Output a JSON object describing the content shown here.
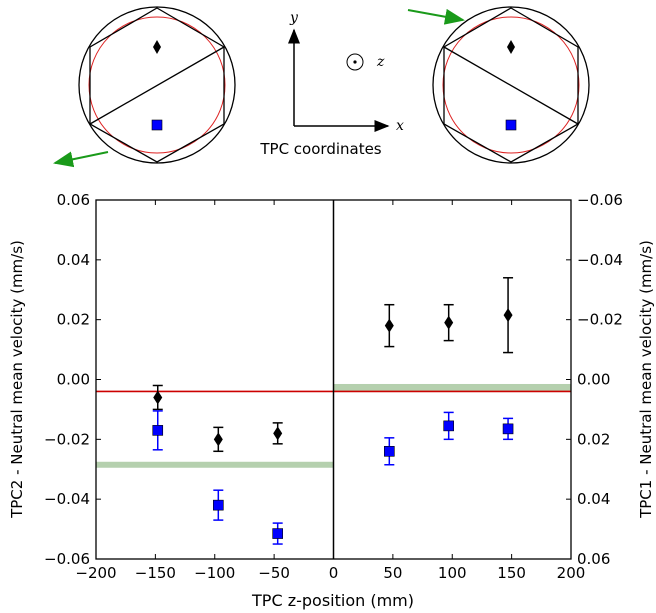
{
  "coordinate_diagram": {
    "caption": "TPC coordinates",
    "axis_y": "y",
    "axis_x": "x",
    "axis_z": "z"
  },
  "chart_data": {
    "type": "scatter",
    "xlabel": "TPC z-position (mm)",
    "ylabel_left": "TPC2 - Neutral mean velocity (mm/s)",
    "ylabel_right": "TPC1 - Neutral mean velocity (mm/s)",
    "xlim": [
      -200,
      200
    ],
    "ylim_left": [
      -0.06,
      0.06
    ],
    "ylim_right": [
      0.06,
      -0.06
    ],
    "x_ticks": [
      "−200",
      "−150",
      "−100",
      "−50",
      "0",
      "50",
      "100",
      "150",
      "200"
    ],
    "y_ticks_left": [
      "0.06",
      "0.04",
      "0.02",
      "0.00",
      "−0.02",
      "−0.04",
      "−0.06"
    ],
    "y_ticks_right": [
      "−0.06",
      "−0.04",
      "−0.02",
      "0.00",
      "0.02",
      "0.04",
      "0.06"
    ],
    "series": [
      {
        "marker": "diamond",
        "color": "#000000",
        "points": [
          {
            "x": -148,
            "y": -0.006,
            "err": 0.004
          },
          {
            "x": -97,
            "y": -0.02,
            "err": 0.004
          },
          {
            "x": -47,
            "y": -0.018,
            "err": 0.0035
          },
          {
            "x": 47,
            "y": 0.018,
            "err": 0.007
          },
          {
            "x": 97,
            "y": 0.019,
            "err": 0.006
          },
          {
            "x": 147,
            "y": 0.0215,
            "err": 0.0125
          }
        ]
      },
      {
        "marker": "square",
        "color": "#0000ff",
        "points": [
          {
            "x": -148,
            "y": -0.017,
            "err": 0.0065
          },
          {
            "x": -97,
            "y": -0.042,
            "err": 0.005
          },
          {
            "x": -47,
            "y": -0.0515,
            "err": 0.0035
          },
          {
            "x": 47,
            "y": -0.024,
            "err": 0.0045
          },
          {
            "x": 97,
            "y": -0.0155,
            "err": 0.0045
          },
          {
            "x": 147,
            "y": -0.0165,
            "err": 0.0035
          }
        ]
      }
    ],
    "red_line": {
      "y": -0.004,
      "color": "#cc0000"
    },
    "green_bands": [
      {
        "x": [
          -200,
          0
        ],
        "y": [
          -0.0295,
          -0.0275
        ],
        "color": "#a8c8a0"
      },
      {
        "x": [
          0,
          200
        ],
        "y": [
          -0.004,
          -0.0015
        ],
        "color": "#a8c8a0"
      }
    ],
    "vertical_divider_x": 0
  }
}
